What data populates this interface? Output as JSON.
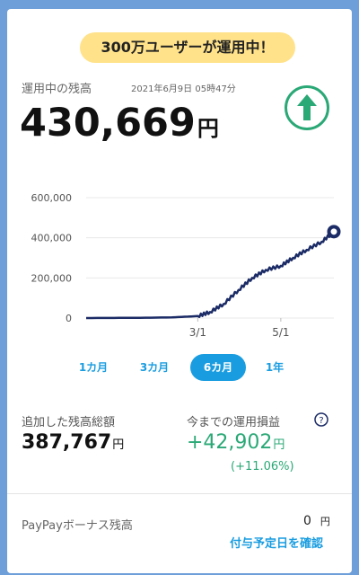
{
  "banner": {
    "text": "300万ユーザーが運用中！"
  },
  "balance": {
    "label": "運用中の残高",
    "timestamp": "2021年6月9日 05時47分",
    "value": "430,669",
    "currency": "円",
    "trend_icon": "up-arrow-icon",
    "trend_color": "#2aa876"
  },
  "chart_data": {
    "type": "line",
    "yticks": [
      "600,000",
      "400,000",
      "200,000",
      "0"
    ],
    "xticks": [
      "3/1",
      "5/1"
    ],
    "ylim": [
      0,
      600000
    ],
    "x": [
      "2020-12-09",
      "2021-01-10",
      "2021-02-10",
      "2021-03-01",
      "2021-03-10",
      "2021-03-20",
      "2021-03-31",
      "2021-04-10",
      "2021-04-20",
      "2021-05-01",
      "2021-05-10",
      "2021-05-20",
      "2021-05-31",
      "2021-06-09"
    ],
    "values": [
      0,
      1000,
      3000,
      10000,
      30000,
      70000,
      140000,
      200000,
      240000,
      260000,
      300000,
      340000,
      380000,
      430669
    ],
    "line_color": "#1b2b66",
    "grid": true
  },
  "period_tabs": [
    {
      "label": "1カ月",
      "active": false
    },
    {
      "label": "3カ月",
      "active": false
    },
    {
      "label": "6カ月",
      "active": true
    },
    {
      "label": "1年",
      "active": false
    }
  ],
  "stats": {
    "added_label": "追加した残高総額",
    "added_value": "387,767",
    "added_currency": "円",
    "pl_label": "今までの運用損益",
    "pl_value": "+42,902",
    "pl_currency": "円",
    "pl_percent": "(+11.06%)",
    "help_icon": "?"
  },
  "bonus": {
    "label": "PayPayボーナス残高",
    "value": "0",
    "currency": "円",
    "link": "付与予定日を確認"
  }
}
